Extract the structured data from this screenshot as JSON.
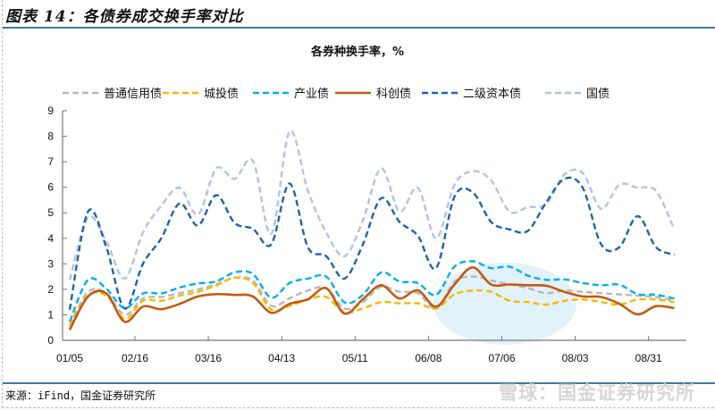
{
  "figure_title": "图表 14：各债券成交换手率对比",
  "source": "来源：iFind，国金证券研究所",
  "watermark": "雪球：国金证券研究所",
  "chart_data": {
    "type": "line",
    "title": "各券种换手率，%",
    "xlabel": "",
    "ylabel": "",
    "ylim": [
      0,
      9
    ],
    "y_ticks": [
      "0",
      "1",
      "2",
      "3",
      "4",
      "5",
      "6",
      "7",
      "8",
      "9"
    ],
    "x_tick_labels": [
      "01/05",
      "02/16",
      "03/16",
      "04/13",
      "05/11",
      "06/08",
      "07/06",
      "08/03",
      "08/31"
    ],
    "grid": false,
    "legend_position": "top",
    "highlight": "ellipse around 06/08–08/03 low-turnover bonds",
    "series": [
      {
        "name": "普通信用债",
        "color": "#b8b8b8",
        "dash": true,
        "values": [
          0.6,
          1.9,
          1.85,
          1.0,
          1.65,
          1.7,
          1.85,
          2.0,
          2.2,
          2.45,
          2.35,
          1.35,
          1.65,
          1.95,
          2.05,
          1.25,
          1.5,
          2.1,
          1.9,
          1.85,
          1.25,
          2.3,
          2.5,
          2.35,
          2.2,
          2.05,
          1.85,
          1.95,
          1.9,
          1.85,
          1.8,
          1.75,
          1.7,
          1.55
        ]
      },
      {
        "name": "城投债",
        "color": "#f5b800",
        "dash": true,
        "values": [
          0.55,
          1.75,
          1.75,
          0.85,
          1.55,
          1.55,
          1.75,
          1.9,
          2.15,
          2.45,
          2.25,
          1.2,
          1.35,
          1.6,
          1.7,
          1.1,
          1.25,
          1.5,
          1.45,
          1.45,
          1.25,
          1.8,
          1.95,
          1.9,
          1.55,
          1.5,
          1.4,
          1.55,
          1.6,
          1.5,
          1.4,
          1.6,
          1.6,
          1.5
        ]
      },
      {
        "name": "产业债",
        "color": "#00aeef",
        "dash": true,
        "values": [
          0.73,
          2.37,
          2.02,
          1.26,
          1.84,
          1.84,
          2.07,
          2.23,
          2.31,
          2.66,
          2.6,
          1.67,
          2.25,
          2.42,
          2.5,
          1.49,
          1.78,
          2.66,
          2.31,
          2.25,
          1.78,
          2.89,
          3.1,
          2.83,
          2.89,
          2.54,
          2.37,
          2.39,
          2.25,
          2.16,
          2.18,
          1.81,
          1.79,
          1.64
        ]
      },
      {
        "name": "科创债",
        "color": "#c55a11",
        "dash": false,
        "values": [
          0.41,
          1.72,
          1.84,
          0.73,
          1.32,
          1.22,
          1.43,
          1.72,
          1.81,
          1.78,
          1.72,
          1.08,
          1.43,
          1.61,
          2.04,
          1.05,
          1.61,
          2.16,
          1.64,
          1.96,
          1.32,
          2.19,
          2.86,
          2.19,
          2.19,
          2.16,
          2.14,
          1.9,
          1.72,
          1.7,
          1.43,
          1.02,
          1.34,
          1.26
        ]
      },
      {
        "name": "二级资本债",
        "color": "#1f63ae",
        "dash": true,
        "values": [
          1.2,
          5.05,
          3.65,
          1.25,
          3.0,
          4.0,
          5.37,
          4.5,
          5.69,
          4.6,
          4.37,
          3.76,
          6.15,
          3.65,
          3.3,
          2.42,
          3.76,
          5.57,
          4.64,
          4.1,
          2.83,
          5.63,
          5.8,
          4.64,
          4.35,
          4.29,
          5.4,
          6.33,
          5.98,
          3.77,
          3.65,
          4.87,
          3.65,
          3.36
        ]
      },
      {
        "name": "国债",
        "color": "#b4c3dd",
        "dash": true,
        "values": [
          2.37,
          4.81,
          3.88,
          2.42,
          4.23,
          5.28,
          5.98,
          4.93,
          6.74,
          6.33,
          7.03,
          4.17,
          8.19,
          5.86,
          4.23,
          3.3,
          4.7,
          6.74,
          5.05,
          5.98,
          4.0,
          6.1,
          6.63,
          6.27,
          5.05,
          5.22,
          5.34,
          6.5,
          6.56,
          5.16,
          6.1,
          5.98,
          5.86,
          4.35
        ]
      }
    ]
  }
}
